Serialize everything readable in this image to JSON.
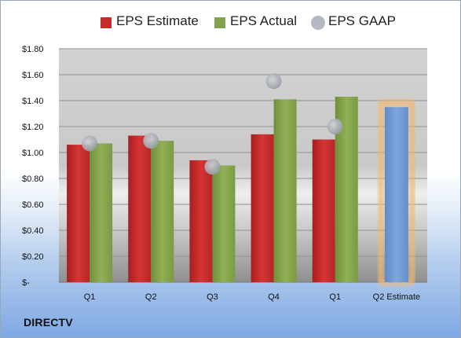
{
  "chart_data": {
    "type": "bar",
    "categories": [
      "Q1",
      "Q2",
      "Q3",
      "Q4",
      "Q1",
      "Q2 Estimate"
    ],
    "series": [
      {
        "name": "EPS Estimate",
        "values": [
          1.06,
          1.13,
          0.94,
          1.14,
          1.1,
          null
        ],
        "color": "#c62b2b"
      },
      {
        "name": "EPS Actual",
        "values": [
          1.07,
          1.09,
          0.9,
          1.41,
          1.43,
          null
        ],
        "color": "#82a24a"
      },
      {
        "name": "EPS GAAP",
        "values": [
          1.07,
          1.09,
          0.89,
          1.55,
          1.2,
          null
        ],
        "color": "#b4bac3"
      }
    ],
    "estimate": {
      "category": "Q2 Estimate",
      "value": 1.35,
      "color": "#6f9ad3",
      "glow": "#f3b870"
    },
    "yticks": [
      "$-",
      "$0.20",
      "$0.40",
      "$0.60",
      "$0.80",
      "$1.00",
      "$1.20",
      "$1.40",
      "$1.60",
      "$1.80"
    ],
    "ylim": [
      0,
      1.8
    ],
    "grid": true,
    "legend_position": "top"
  },
  "footer": {
    "brand": "DIRECTV"
  }
}
